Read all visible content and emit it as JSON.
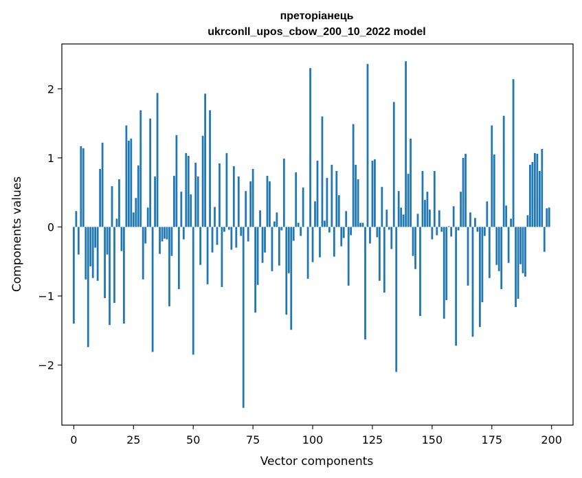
{
  "chart_data": {
    "type": "bar",
    "title": "преторіанець",
    "subtitle": "ukrconll_upos_cbow_200_10_2022 model",
    "xlabel": "Vector components",
    "ylabel": "Components values",
    "xlim": [
      -5,
      209
    ],
    "ylim": [
      -2.87,
      2.65
    ],
    "xticks": [
      0,
      25,
      50,
      75,
      100,
      125,
      150,
      175,
      200
    ],
    "yticks": [
      -2,
      -1,
      0,
      1,
      2
    ],
    "ytick_labels": [
      "−2",
      "−1",
      "0",
      "1",
      "2"
    ],
    "bar_color": "#1f77b4",
    "grid": false,
    "values": [
      -1.4,
      0.23,
      -0.4,
      1.17,
      1.14,
      -0.76,
      -1.74,
      -0.57,
      -0.74,
      -0.3,
      -0.78,
      0.84,
      1.22,
      -1.03,
      -0.4,
      -1.42,
      0.59,
      -1.1,
      0.12,
      0.69,
      -0.35,
      -1.4,
      1.47,
      1.25,
      1.28,
      0.21,
      0.42,
      0.89,
      1.69,
      -0.76,
      -0.24,
      0.28,
      1.57,
      -1.81,
      0.73,
      1.94,
      -0.39,
      -0.21,
      -0.17,
      -0.18,
      -1.15,
      -0.42,
      0.74,
      1.33,
      -0.9,
      0.51,
      -0.18,
      1.07,
      1.03,
      0.47,
      -1.85,
      0.93,
      0.73,
      -0.55,
      1.32,
      1.93,
      -0.83,
      1.69,
      -0.37,
      0.29,
      -0.26,
      0.92,
      -0.87,
      -0.07,
      1.07,
      -0.04,
      -0.33,
      0.88,
      -0.3,
      0.73,
      -0.13,
      -2.62,
      0.52,
      -0.21,
      0.66,
      0.84,
      -1.24,
      -0.84,
      0.24,
      -0.52,
      -0.37,
      0.74,
      0.66,
      -0.64,
      0.08,
      0.21,
      -0.56,
      -0.05,
      0.99,
      -1.27,
      -0.67,
      -1.49,
      -0.2,
      0.79,
      0.06,
      -0.13,
      0.57,
      0.0,
      -0.75,
      2.3,
      -0.51,
      0.37,
      0.96,
      -0.44,
      1.6,
      0.09,
      0.71,
      -0.08,
      0.9,
      -0.43,
      0.81,
      0.46,
      -0.28,
      -0.16,
      0.23,
      -0.85,
      -0.12,
      1.49,
      0.9,
      0.69,
      0.06,
      0.06,
      -1.63,
      2.36,
      -0.24,
      0.96,
      0.98,
      -0.15,
      -0.78,
      0.58,
      -0.95,
      0.25,
      -0.04,
      -0.32,
      1.81,
      -2.1,
      0.52,
      0.28,
      0.18,
      2.4,
      0.77,
      1.28,
      -0.42,
      -0.61,
      0.19,
      -1.29,
      0.81,
      0.39,
      0.51,
      0.25,
      -0.18,
      0.81,
      -0.12,
      0.24,
      -0.07,
      -1.33,
      -1.06,
      0.01,
      -0.14,
      0.3,
      -1.72,
      -0.05,
      0.51,
      1.0,
      1.06,
      -0.85,
      0.21,
      -1.59,
      0.13,
      -0.07,
      -1.45,
      -1.09,
      -0.13,
      0.37,
      -0.74,
      1.47,
      1.05,
      -0.55,
      -0.64,
      -0.9,
      1.61,
      0.31,
      -0.52,
      0.12,
      2.14,
      -1.16,
      -1.04,
      -0.54,
      -0.67,
      -0.72,
      0.17,
      0.9,
      0.94,
      1.07,
      1.06,
      0.81,
      1.13,
      -0.36,
      0.27,
      0.28
    ]
  }
}
